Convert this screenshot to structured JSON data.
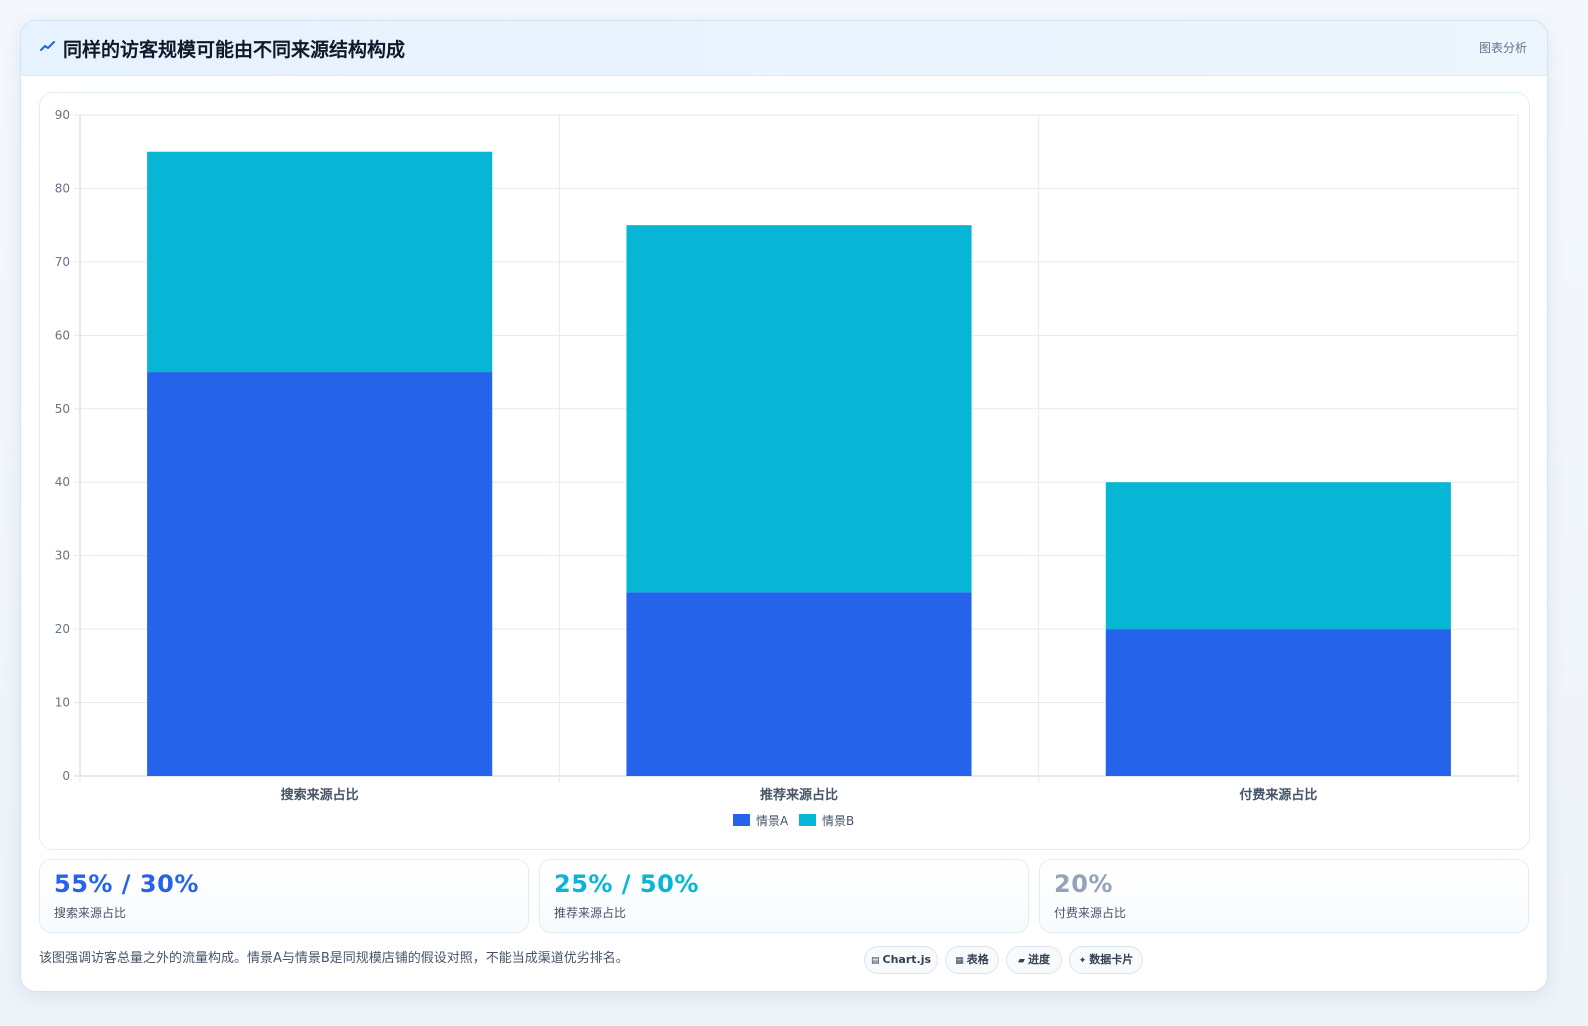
{
  "header": {
    "title": "同样的访客规模可能由不同来源结构构成",
    "tag": "图表分析"
  },
  "chart_data": {
    "type": "bar",
    "stacked": true,
    "categories": [
      "搜索来源占比",
      "推荐来源占比",
      "付费来源占比"
    ],
    "series": [
      {
        "name": "情景A",
        "color": "#2563eb",
        "values": [
          55,
          25,
          20
        ]
      },
      {
        "name": "情景B",
        "color": "#06b6d4",
        "values": [
          30,
          50,
          20
        ]
      }
    ],
    "ylim": [
      0,
      90
    ],
    "yticks": [
      0,
      10,
      20,
      30,
      40,
      50,
      60,
      70,
      80,
      90
    ],
    "grid": true,
    "legend": "bottom-center"
  },
  "stats": [
    {
      "value": "55% / 30%",
      "label": "搜索来源占比",
      "color": "#2563eb"
    },
    {
      "value": "25% / 50%",
      "label": "推荐来源占比",
      "color": "#06b6d4"
    },
    {
      "value": "20%",
      "label": "付费来源占比",
      "color": "#94a3b8"
    }
  ],
  "note": "该图强调访客总量之外的流量构成。情景A与情景B是同规模店铺的假设对照，不能当成渠道优劣排名。",
  "chips": [
    {
      "icon": "▤",
      "label": "Chart.js",
      "icon_name": "chart-icon"
    },
    {
      "icon": "▦",
      "label": "表格",
      "icon_name": "table-icon"
    },
    {
      "icon": "▰",
      "label": "进度",
      "icon_name": "progress-icon"
    },
    {
      "icon": "✦",
      "label": "数据卡片",
      "icon_name": "card-icon"
    }
  ]
}
